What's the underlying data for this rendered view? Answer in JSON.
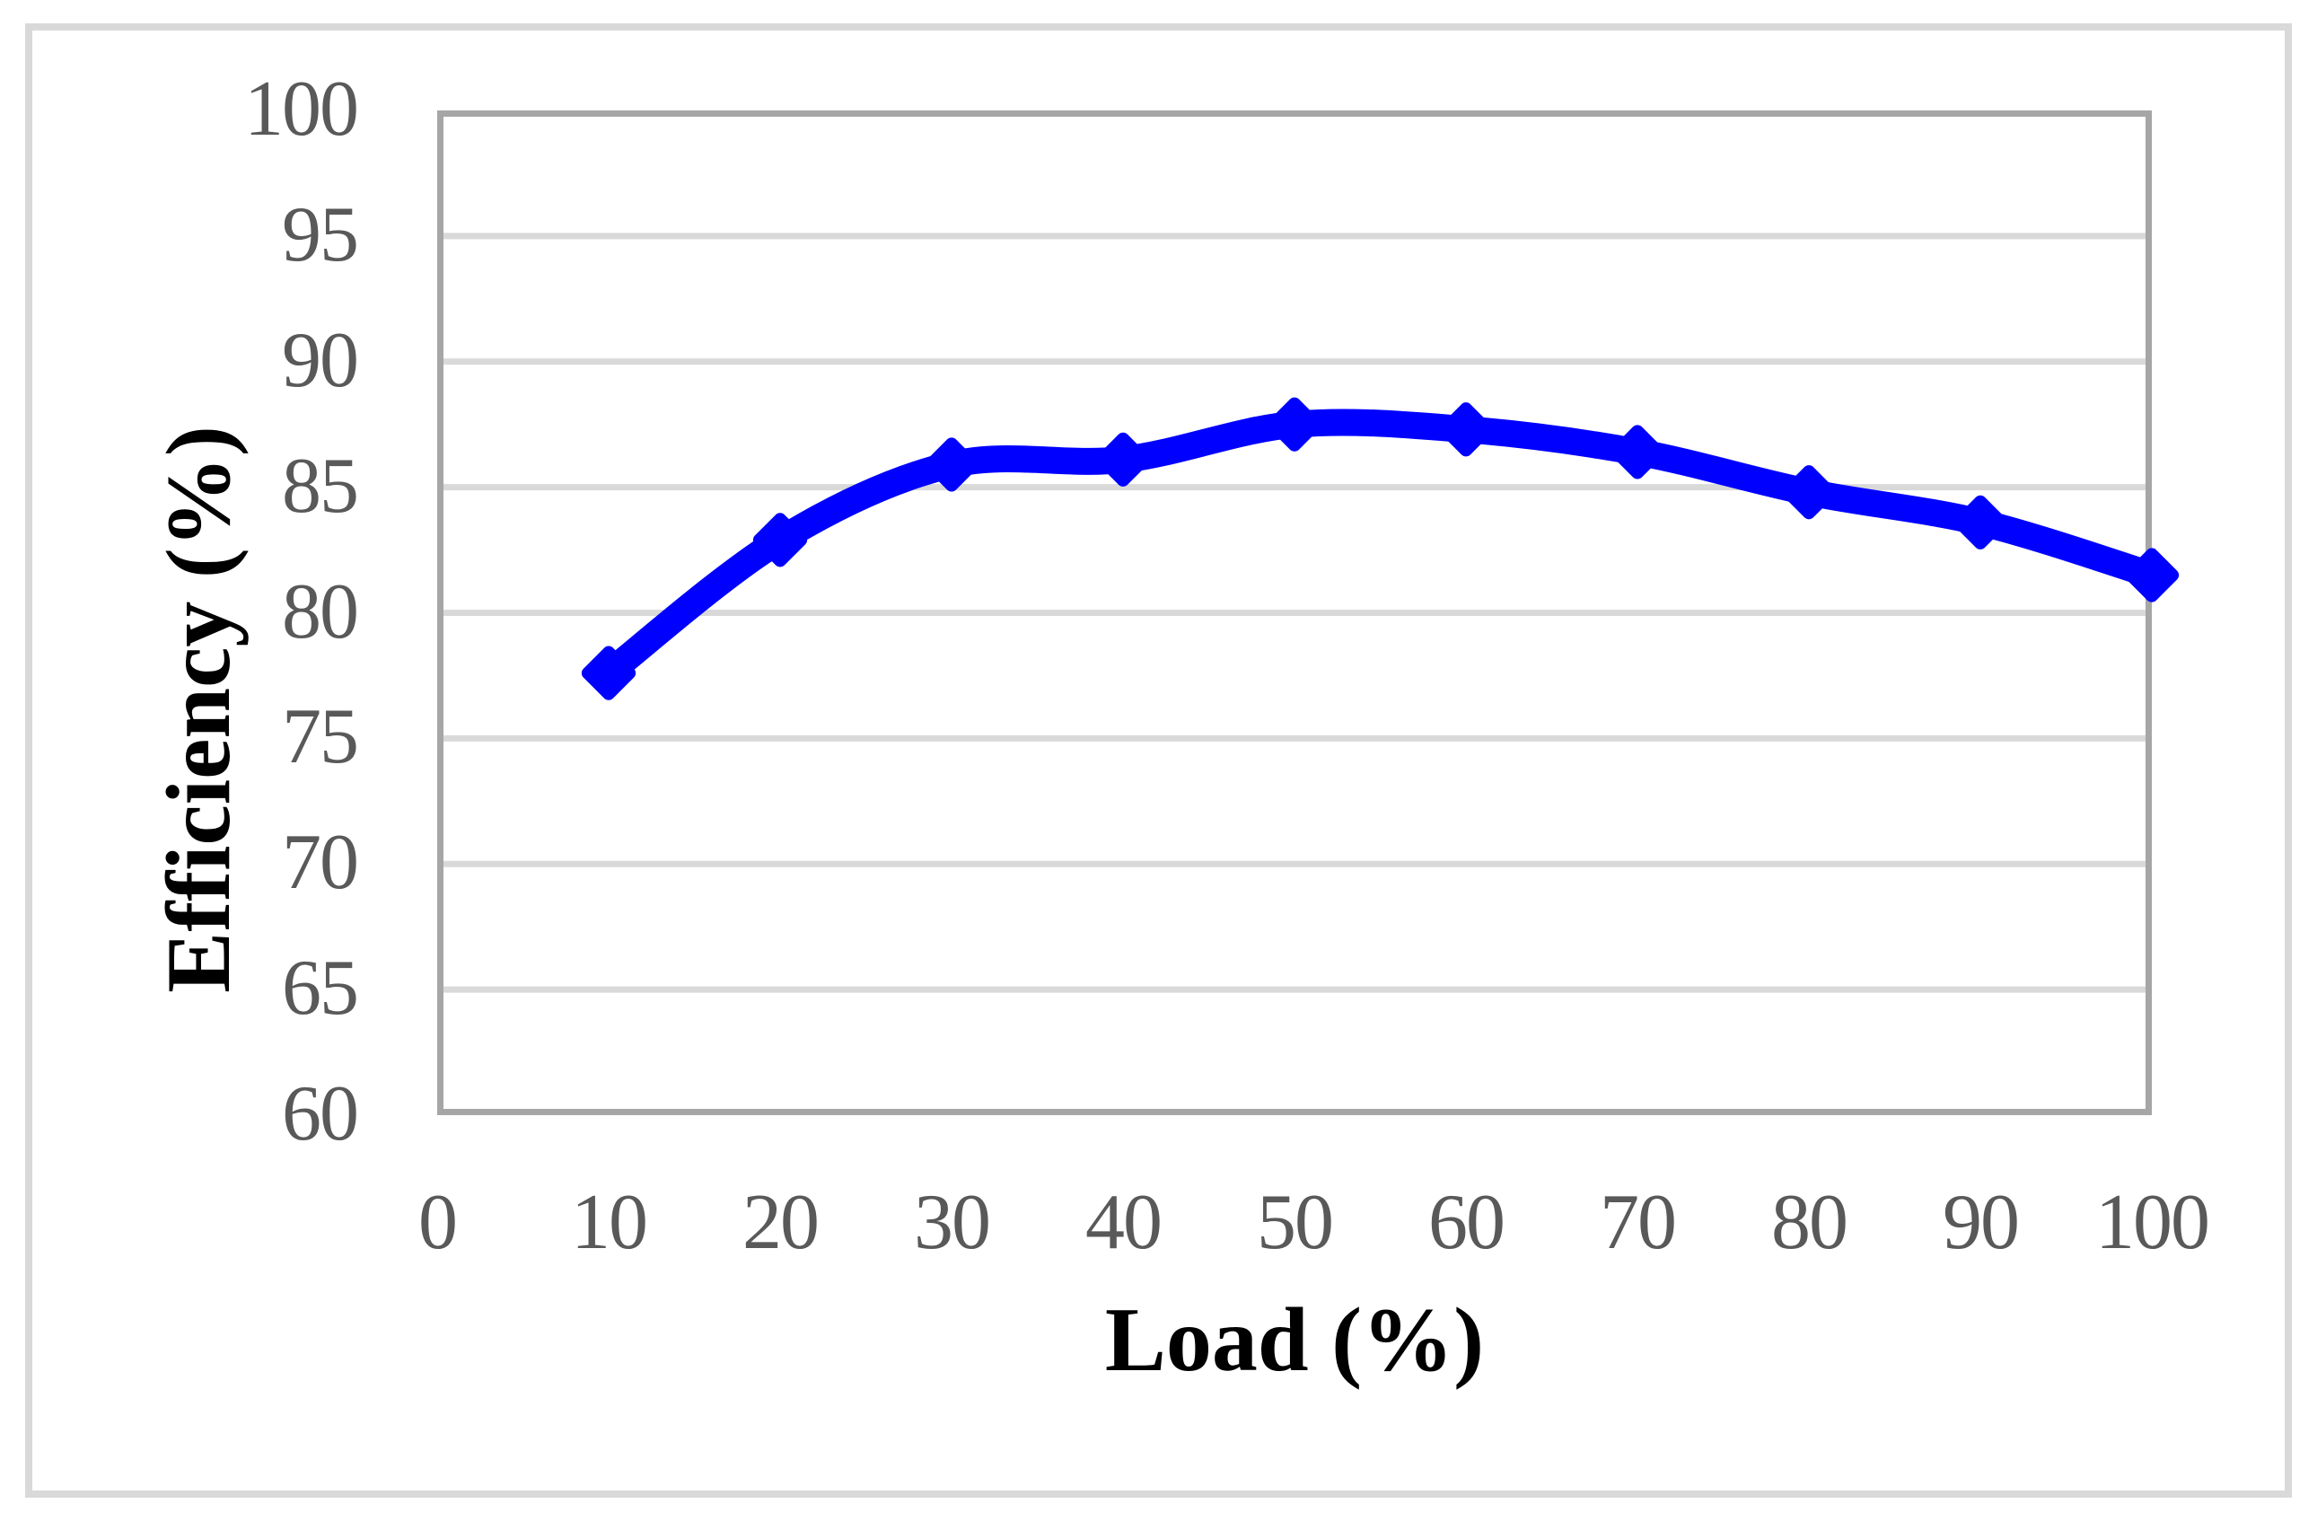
{
  "figure": {
    "frame_color": "#d9d9d9",
    "background_color": "#ffffff"
  },
  "chart_data": {
    "type": "line",
    "title": "",
    "xlabel": "Load (%)",
    "ylabel": "Efficiency (%)",
    "x": [
      10,
      20,
      30,
      40,
      50,
      60,
      70,
      80,
      90,
      100
    ],
    "series": [
      {
        "name": "Efficiency",
        "values": [
          77.6,
          82.9,
          85.9,
          86.1,
          87.5,
          87.3,
          86.4,
          84.8,
          83.6,
          81.5
        ],
        "color": "#0000ff",
        "marker": "diamond",
        "smooth": true,
        "line_width": 30,
        "marker_size": 66
      }
    ],
    "xlim": [
      0,
      100
    ],
    "ylim": [
      60,
      100
    ],
    "x_ticks": [
      0,
      10,
      20,
      30,
      40,
      50,
      60,
      70,
      80,
      90,
      100
    ],
    "y_ticks": [
      60,
      65,
      70,
      75,
      80,
      85,
      90,
      95,
      100
    ],
    "grid": "horizontal",
    "gridline_color": "#d9d9d9",
    "plot_border_color": "#a6a6a6",
    "tick_label_color": "#595959",
    "axis_title_color": "#000000",
    "legend": "none"
  }
}
